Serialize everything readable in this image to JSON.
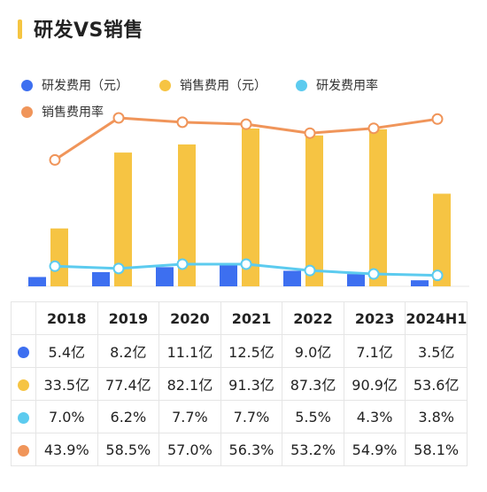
{
  "title": "研发VS销售",
  "colors": {
    "accent": "#f5c542",
    "rd_expense": "#3d6ff0",
    "sales_expense": "#f6c443",
    "rd_rate": "#5ccbef",
    "sales_rate": "#f0955a"
  },
  "legend": [
    {
      "label": "研发费用（元）",
      "color": "#3d6ff0"
    },
    {
      "label": "销售费用（元）",
      "color": "#f6c443"
    },
    {
      "label": "研发费用率",
      "color": "#5ccbef"
    },
    {
      "label": "销售费用率",
      "color": "#f0955a"
    }
  ],
  "chart_data": {
    "type": "bar",
    "categories": [
      "2018",
      "2019",
      "2020",
      "2021",
      "2022",
      "2023",
      "2024H1"
    ],
    "series": [
      {
        "name": "研发费用（元）",
        "kind": "bar",
        "unit": "亿",
        "values": [
          5.4,
          8.2,
          11.1,
          12.5,
          9.0,
          7.1,
          3.5
        ]
      },
      {
        "name": "销售费用（元）",
        "kind": "bar",
        "unit": "亿",
        "values": [
          33.5,
          77.4,
          82.1,
          91.3,
          87.3,
          90.9,
          53.6
        ]
      },
      {
        "name": "研发费用率",
        "kind": "line",
        "unit": "%",
        "values": [
          7.0,
          6.2,
          7.7,
          7.7,
          5.5,
          4.3,
          3.8
        ]
      },
      {
        "name": "销售费用率",
        "kind": "line",
        "unit": "%",
        "values": [
          43.9,
          58.5,
          57.0,
          56.3,
          53.2,
          54.9,
          58.1
        ]
      }
    ],
    "grid": false,
    "legend_position": "top-left"
  },
  "table": {
    "years": [
      "2018",
      "2019",
      "2020",
      "2021",
      "2022",
      "2023",
      "2024H1"
    ],
    "rows": [
      {
        "color": "#3d6ff0",
        "cells": [
          "5.4亿",
          "8.2亿",
          "11.1亿",
          "12.5亿",
          "9.0亿",
          "7.1亿",
          "3.5亿"
        ]
      },
      {
        "color": "#f6c443",
        "cells": [
          "33.5亿",
          "77.4亿",
          "82.1亿",
          "91.3亿",
          "87.3亿",
          "90.9亿",
          "53.6亿"
        ]
      },
      {
        "color": "#5ccbef",
        "cells": [
          "7.0%",
          "6.2%",
          "7.7%",
          "7.7%",
          "5.5%",
          "4.3%",
          "3.8%"
        ]
      },
      {
        "color": "#f0955a",
        "cells": [
          "43.9%",
          "58.5%",
          "57.0%",
          "56.3%",
          "53.2%",
          "54.9%",
          "58.1%"
        ]
      }
    ]
  }
}
